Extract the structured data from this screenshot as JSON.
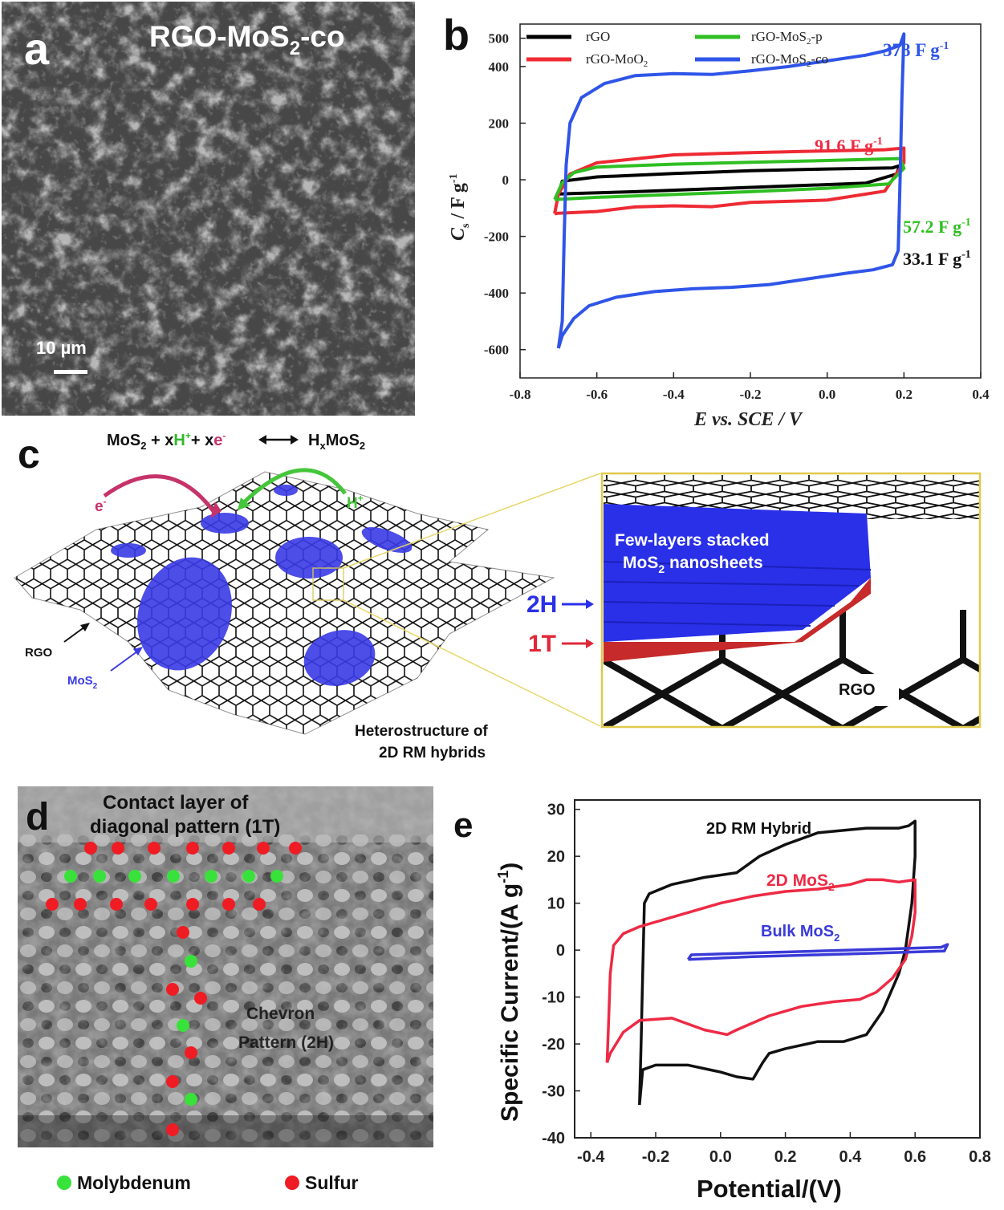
{
  "panel_a": {
    "letter": "a",
    "title_main": "RGO-MoS",
    "title_sub": "2",
    "title_tail": "-co",
    "scale_bar": "10 µm"
  },
  "panel_b": {
    "letter": "b",
    "legend": {
      "rgo": "rGO",
      "rgo_moo2_main": "rGO-MoO",
      "rgo_moo2_sub": "2",
      "rgo_mos2p_main": "rGO-MoS",
      "rgo_mos2p_sub": "2",
      "rgo_mos2p_tail": "-p",
      "rgo_mos2co_main": "rGO-MoS",
      "rgo_mos2co_sub": "2",
      "rgo_mos2co_tail": "-co"
    },
    "annotations": {
      "blue_main": "378 F g",
      "blue_sup": "-1",
      "red_main": "91.6 F g",
      "red_sup": "-1",
      "green_main": "57.2 F g",
      "green_sup": "-1",
      "black_main": "33.1 F g",
      "black_sup": "-1"
    },
    "ylabel_c": "C",
    "ylabel_sub": "s",
    "ylabel_rest": " / F g",
    "ylabel_sup": "-1",
    "xlabel": "E vs. SCE / V",
    "colors": {
      "rgo": "#000000",
      "moo2": "#ee2a33",
      "mos2p": "#2fbf22",
      "mos2co": "#2f55e8"
    }
  },
  "panel_c": {
    "letter": "c",
    "reaction": {
      "p1": "MoS",
      "p1sub": "2",
      "p2": " + x",
      "hplus": "H",
      "hplus_sup": "+",
      "p3": "+ x",
      "eminus": "e",
      "eminus_sup": "-",
      "p4": "H",
      "p4sub": "x",
      "p5": "MoS",
      "p5sub": "2"
    },
    "e_label": "e",
    "e_sup": "-",
    "h_label": "H",
    "h_sup": "+",
    "rgo_label": "RGO",
    "mos2_label": "MoS",
    "mos2_sub": "2",
    "hetero_line1": "Heterostructure of",
    "hetero_line2": "2D RM hybrids",
    "inset_line1": "Few-layers stacked",
    "inset_line2_main": "MoS",
    "inset_line2_sub": "2",
    "inset_line2_tail": " nanosheets",
    "label_2h": "2H",
    "label_1t": "1T",
    "inset_rgo": "RGO"
  },
  "panel_d": {
    "letter": "d",
    "title_line1": "Contact layer of",
    "title_line2": "diagonal pattern (1T)",
    "chevron_line1": "Chevron",
    "chevron_line2": "Pattern (2H)",
    "legend_mo": "Molybdenum",
    "legend_s": "Sulfur"
  },
  "panel_e": {
    "letter": "e",
    "label_hybrid": "2D RM Hybrid",
    "label_2d_main": "2D MoS",
    "label_2d_sub": "2",
    "label_bulk_main": "Bulk MoS",
    "label_bulk_sub": "2",
    "ylabel_main": "Specific Current/(A g",
    "ylabel_sup": "-1",
    "ylabel_tail": ")",
    "xlabel": "Potential/(V)"
  },
  "chart_data": [
    {
      "type": "line",
      "panel": "b",
      "xlabel": "E vs. SCE / V",
      "ylabel": "Cs / F g-1",
      "xlim": [
        -0.8,
        0.4
      ],
      "ylim": [
        -700,
        550
      ],
      "xticks": [
        -0.8,
        -0.6,
        -0.4,
        -0.2,
        0.0,
        0.2,
        0.4
      ],
      "yticks": [
        -600,
        -400,
        -200,
        0,
        200,
        400,
        500
      ],
      "legend_position": "top",
      "series": [
        {
          "name": "rGO",
          "color": "#000000",
          "points": [
            [
              -0.7,
              -50
            ],
            [
              -0.69,
              -5
            ],
            [
              -0.6,
              10
            ],
            [
              -0.4,
              22
            ],
            [
              -0.2,
              32
            ],
            [
              0.0,
              38
            ],
            [
              0.17,
              42
            ],
            [
              0.19,
              50
            ],
            [
              0.18,
              20
            ],
            [
              0.1,
              -12
            ],
            [
              -0.1,
              -22
            ],
            [
              -0.3,
              -32
            ],
            [
              -0.5,
              -42
            ],
            [
              -0.65,
              -48
            ],
            [
              -0.7,
              -50
            ]
          ]
        },
        {
          "name": "rGO-MoO2",
          "color": "#ee2a33",
          "points": [
            [
              -0.71,
              -120
            ],
            [
              -0.7,
              -50
            ],
            [
              -0.67,
              20
            ],
            [
              -0.6,
              60
            ],
            [
              -0.4,
              88
            ],
            [
              -0.2,
              96
            ],
            [
              0.0,
              102
            ],
            [
              0.15,
              106
            ],
            [
              0.2,
              112
            ],
            [
              0.2,
              60
            ],
            [
              0.15,
              -40
            ],
            [
              0.0,
              -72
            ],
            [
              -0.2,
              -80
            ],
            [
              -0.3,
              -95
            ],
            [
              -0.4,
              -92
            ],
            [
              -0.5,
              -96
            ],
            [
              -0.6,
              -112
            ],
            [
              -0.7,
              -118
            ],
            [
              -0.71,
              -120
            ]
          ]
        },
        {
          "name": "rGO-MoS2-p",
          "color": "#2fbf22",
          "points": [
            [
              -0.71,
              -70
            ],
            [
              -0.69,
              -10
            ],
            [
              -0.66,
              25
            ],
            [
              -0.6,
              45
            ],
            [
              -0.4,
              55
            ],
            [
              -0.2,
              62
            ],
            [
              0.0,
              68
            ],
            [
              0.19,
              75
            ],
            [
              0.2,
              40
            ],
            [
              0.16,
              -15
            ],
            [
              0.0,
              -30
            ],
            [
              -0.2,
              -42
            ],
            [
              -0.4,
              -52
            ],
            [
              -0.6,
              -62
            ],
            [
              -0.71,
              -70
            ]
          ]
        },
        {
          "name": "rGO-MoS2-co",
          "color": "#2f55e8",
          "points": [
            [
              -0.7,
              -595
            ],
            [
              -0.69,
              -500
            ],
            [
              -0.685,
              -200
            ],
            [
              -0.68,
              50
            ],
            [
              -0.67,
              200
            ],
            [
              -0.64,
              290
            ],
            [
              -0.58,
              340
            ],
            [
              -0.5,
              368
            ],
            [
              -0.4,
              375
            ],
            [
              -0.3,
              372
            ],
            [
              -0.2,
              385
            ],
            [
              -0.1,
              400
            ],
            [
              0.0,
              420
            ],
            [
              0.1,
              440
            ],
            [
              0.15,
              455
            ],
            [
              0.19,
              475
            ],
            [
              0.2,
              515
            ],
            [
              0.195,
              300
            ],
            [
              0.19,
              0
            ],
            [
              0.185,
              -250
            ],
            [
              0.17,
              -300
            ],
            [
              0.12,
              -318
            ],
            [
              0.05,
              -330
            ],
            [
              -0.05,
              -350
            ],
            [
              -0.15,
              -370
            ],
            [
              -0.25,
              -380
            ],
            [
              -0.35,
              -385
            ],
            [
              -0.45,
              -395
            ],
            [
              -0.55,
              -415
            ],
            [
              -0.62,
              -445
            ],
            [
              -0.66,
              -490
            ],
            [
              -0.69,
              -550
            ],
            [
              -0.7,
              -595
            ]
          ]
        }
      ],
      "annotations": [
        "378 F g-1",
        "91.6 F g-1",
        "57.2 F g-1",
        "33.1 F g-1"
      ]
    },
    {
      "type": "line",
      "panel": "e",
      "xlabel": "Potential/(V)",
      "ylabel": "Specific Current/(A g-1)",
      "xlim": [
        -0.45,
        0.8
      ],
      "ylim": [
        -40,
        32
      ],
      "xticks": [
        -0.4,
        -0.2,
        0.0,
        0.2,
        0.4,
        0.6,
        0.8
      ],
      "yticks": [
        -40,
        -30,
        -20,
        -10,
        0,
        10,
        20,
        30
      ],
      "series": [
        {
          "name": "2D RM Hybrid",
          "color": "#111111",
          "points": [
            [
              -0.25,
              -33
            ],
            [
              -0.245,
              -20
            ],
            [
              -0.24,
              -5
            ],
            [
              -0.235,
              10
            ],
            [
              -0.22,
              12
            ],
            [
              -0.15,
              14
            ],
            [
              -0.05,
              15.5
            ],
            [
              0.05,
              16.5
            ],
            [
              0.12,
              20
            ],
            [
              0.2,
              22.5
            ],
            [
              0.3,
              25
            ],
            [
              0.45,
              26
            ],
            [
              0.55,
              26
            ],
            [
              0.58,
              26.5
            ],
            [
              0.6,
              27.5
            ],
            [
              0.6,
              20
            ],
            [
              0.59,
              10
            ],
            [
              0.57,
              0
            ],
            [
              0.55,
              -5
            ],
            [
              0.5,
              -13
            ],
            [
              0.45,
              -18
            ],
            [
              0.38,
              -19.5
            ],
            [
              0.3,
              -19.5
            ],
            [
              0.2,
              -21
            ],
            [
              0.15,
              -22
            ],
            [
              0.13,
              -24
            ],
            [
              0.1,
              -27.5
            ],
            [
              0.05,
              -27
            ],
            [
              0.0,
              -26
            ],
            [
              -0.1,
              -24.5
            ],
            [
              -0.2,
              -24.5
            ],
            [
              -0.24,
              -25.5
            ],
            [
              -0.25,
              -33
            ]
          ]
        },
        {
          "name": "2D MoS2",
          "color": "#ee2a45",
          "points": [
            [
              -0.35,
              -24
            ],
            [
              -0.345,
              -15
            ],
            [
              -0.34,
              -5
            ],
            [
              -0.33,
              1
            ],
            [
              -0.3,
              3.5
            ],
            [
              -0.25,
              5
            ],
            [
              -0.2,
              6
            ],
            [
              -0.1,
              8
            ],
            [
              0.0,
              10
            ],
            [
              0.1,
              11.5
            ],
            [
              0.2,
              12.5
            ],
            [
              0.3,
              13
            ],
            [
              0.4,
              14
            ],
            [
              0.45,
              15
            ],
            [
              0.5,
              15
            ],
            [
              0.55,
              14.5
            ],
            [
              0.6,
              15
            ],
            [
              0.6,
              8
            ],
            [
              0.59,
              3
            ],
            [
              0.57,
              -2
            ],
            [
              0.53,
              -6
            ],
            [
              0.48,
              -9
            ],
            [
              0.43,
              -10.5
            ],
            [
              0.35,
              -11
            ],
            [
              0.25,
              -12
            ],
            [
              0.15,
              -14
            ],
            [
              0.05,
              -17
            ],
            [
              0.02,
              -18
            ],
            [
              -0.05,
              -17
            ],
            [
              -0.15,
              -14.5
            ],
            [
              -0.25,
              -15
            ],
            [
              -0.3,
              -17.5
            ],
            [
              -0.34,
              -22
            ],
            [
              -0.35,
              -24
            ]
          ]
        },
        {
          "name": "Bulk MoS2",
          "color": "#3a3ad8",
          "points": [
            [
              -0.1,
              -2
            ],
            [
              -0.09,
              -1
            ],
            [
              0.1,
              -0.6
            ],
            [
              0.3,
              -0.2
            ],
            [
              0.5,
              0.2
            ],
            [
              0.68,
              0.6
            ],
            [
              0.7,
              1.2
            ],
            [
              0.69,
              -0.2
            ],
            [
              0.5,
              -0.6
            ],
            [
              0.3,
              -1
            ],
            [
              0.1,
              -1.4
            ],
            [
              -0.1,
              -2
            ]
          ]
        }
      ],
      "annotations": [
        "2D RM Hybrid",
        "2D MoS2",
        "Bulk MoS2"
      ]
    }
  ]
}
